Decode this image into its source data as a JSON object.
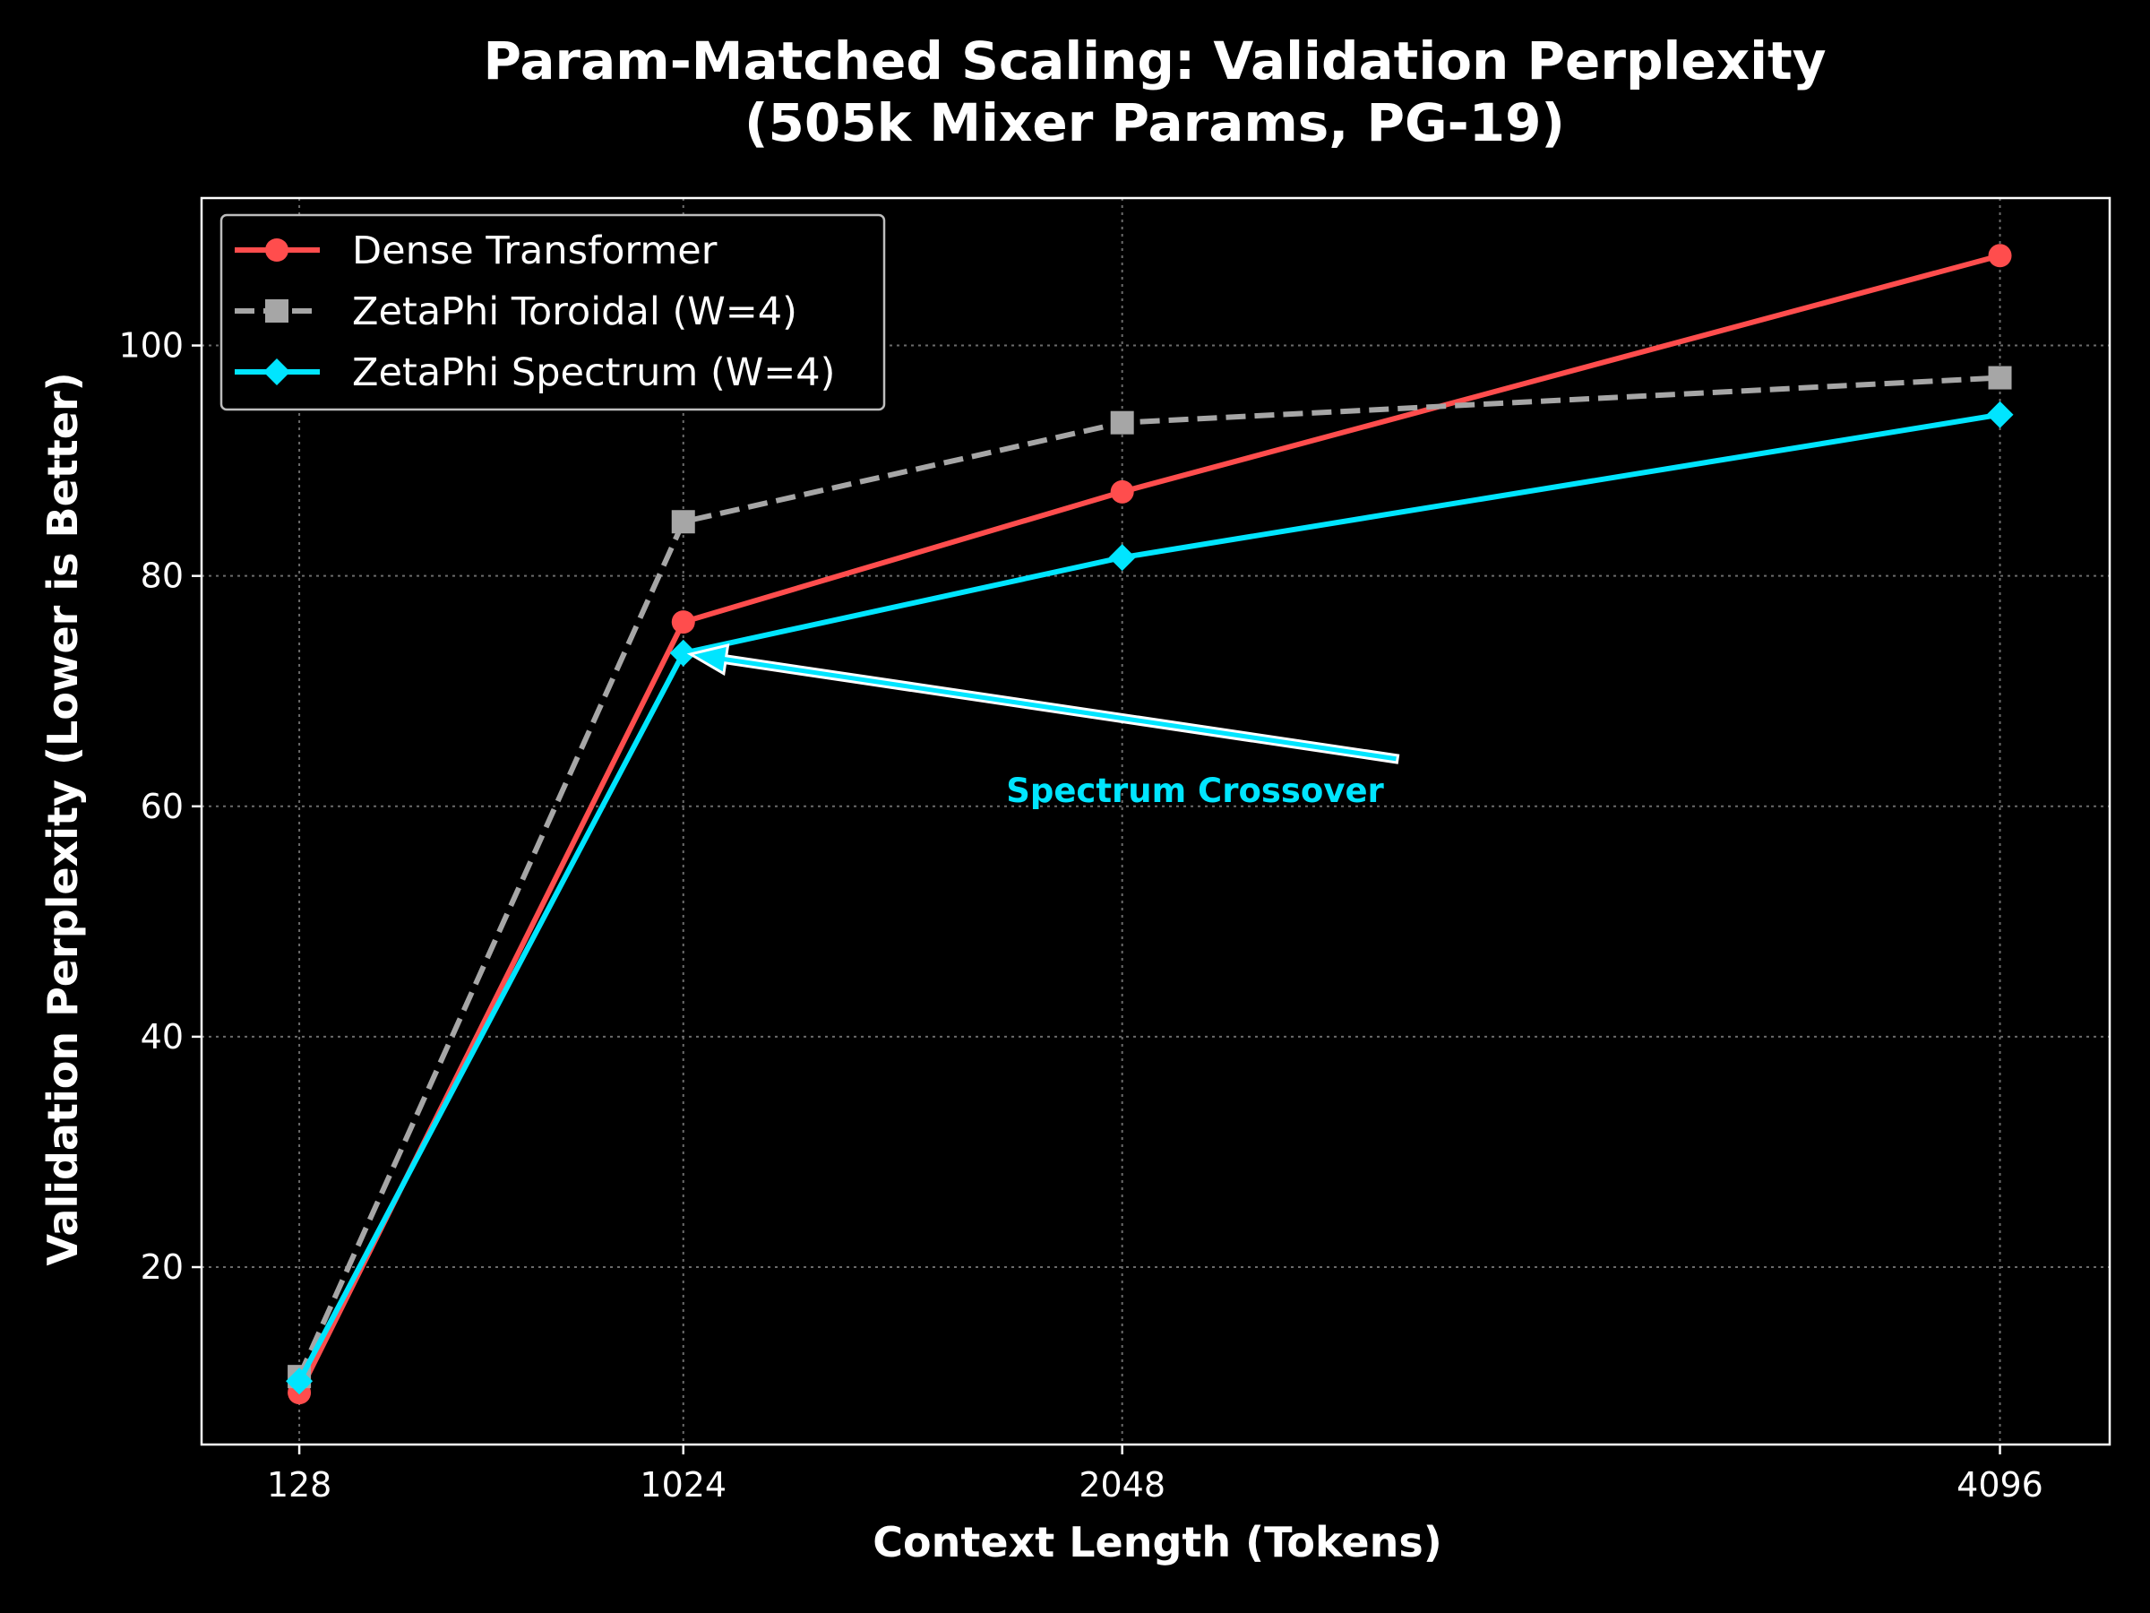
{
  "chart_data": {
    "type": "line",
    "title": "Param-Matched Scaling: Validation Perplexity",
    "subtitle": "(505k Mixer Params, PG-19)",
    "xlabel": "Context Length (Tokens)",
    "ylabel": "Validation Perplexity (Lower is Better)",
    "x": [
      128,
      1024,
      2048,
      4096
    ],
    "x_tick_labels": [
      "128",
      "1024",
      "2048",
      "4096"
    ],
    "y_ticks": [
      20,
      40,
      60,
      80,
      100
    ],
    "y_tick_labels": [
      "20",
      "40",
      "60",
      "80",
      "100"
    ],
    "xlim": [
      -100,
      4352
    ],
    "ylim": [
      4.6,
      112.8
    ],
    "grid": true,
    "legend_position": "upper-left",
    "series": [
      {
        "name": "Dense Transformer",
        "values": [
          9.1,
          76.0,
          87.3,
          107.8
        ],
        "color": "#ff4d4d",
        "style": "solid",
        "marker": "circle"
      },
      {
        "name": "ZetaPhi Toroidal (W=4)",
        "values": [
          10.5,
          84.7,
          93.3,
          97.2
        ],
        "color": "#a6a6a6",
        "style": "dashed",
        "marker": "square"
      },
      {
        "name": "ZetaPhi Spectrum (W=4)",
        "values": [
          10.1,
          73.3,
          81.6,
          94.0
        ],
        "color": "#00e5ff",
        "style": "solid",
        "marker": "diamond"
      }
    ],
    "annotations": [
      {
        "text": "Spectrum Crossover",
        "x": 1024,
        "y": 73.3,
        "color": "#00e5ff"
      }
    ]
  }
}
